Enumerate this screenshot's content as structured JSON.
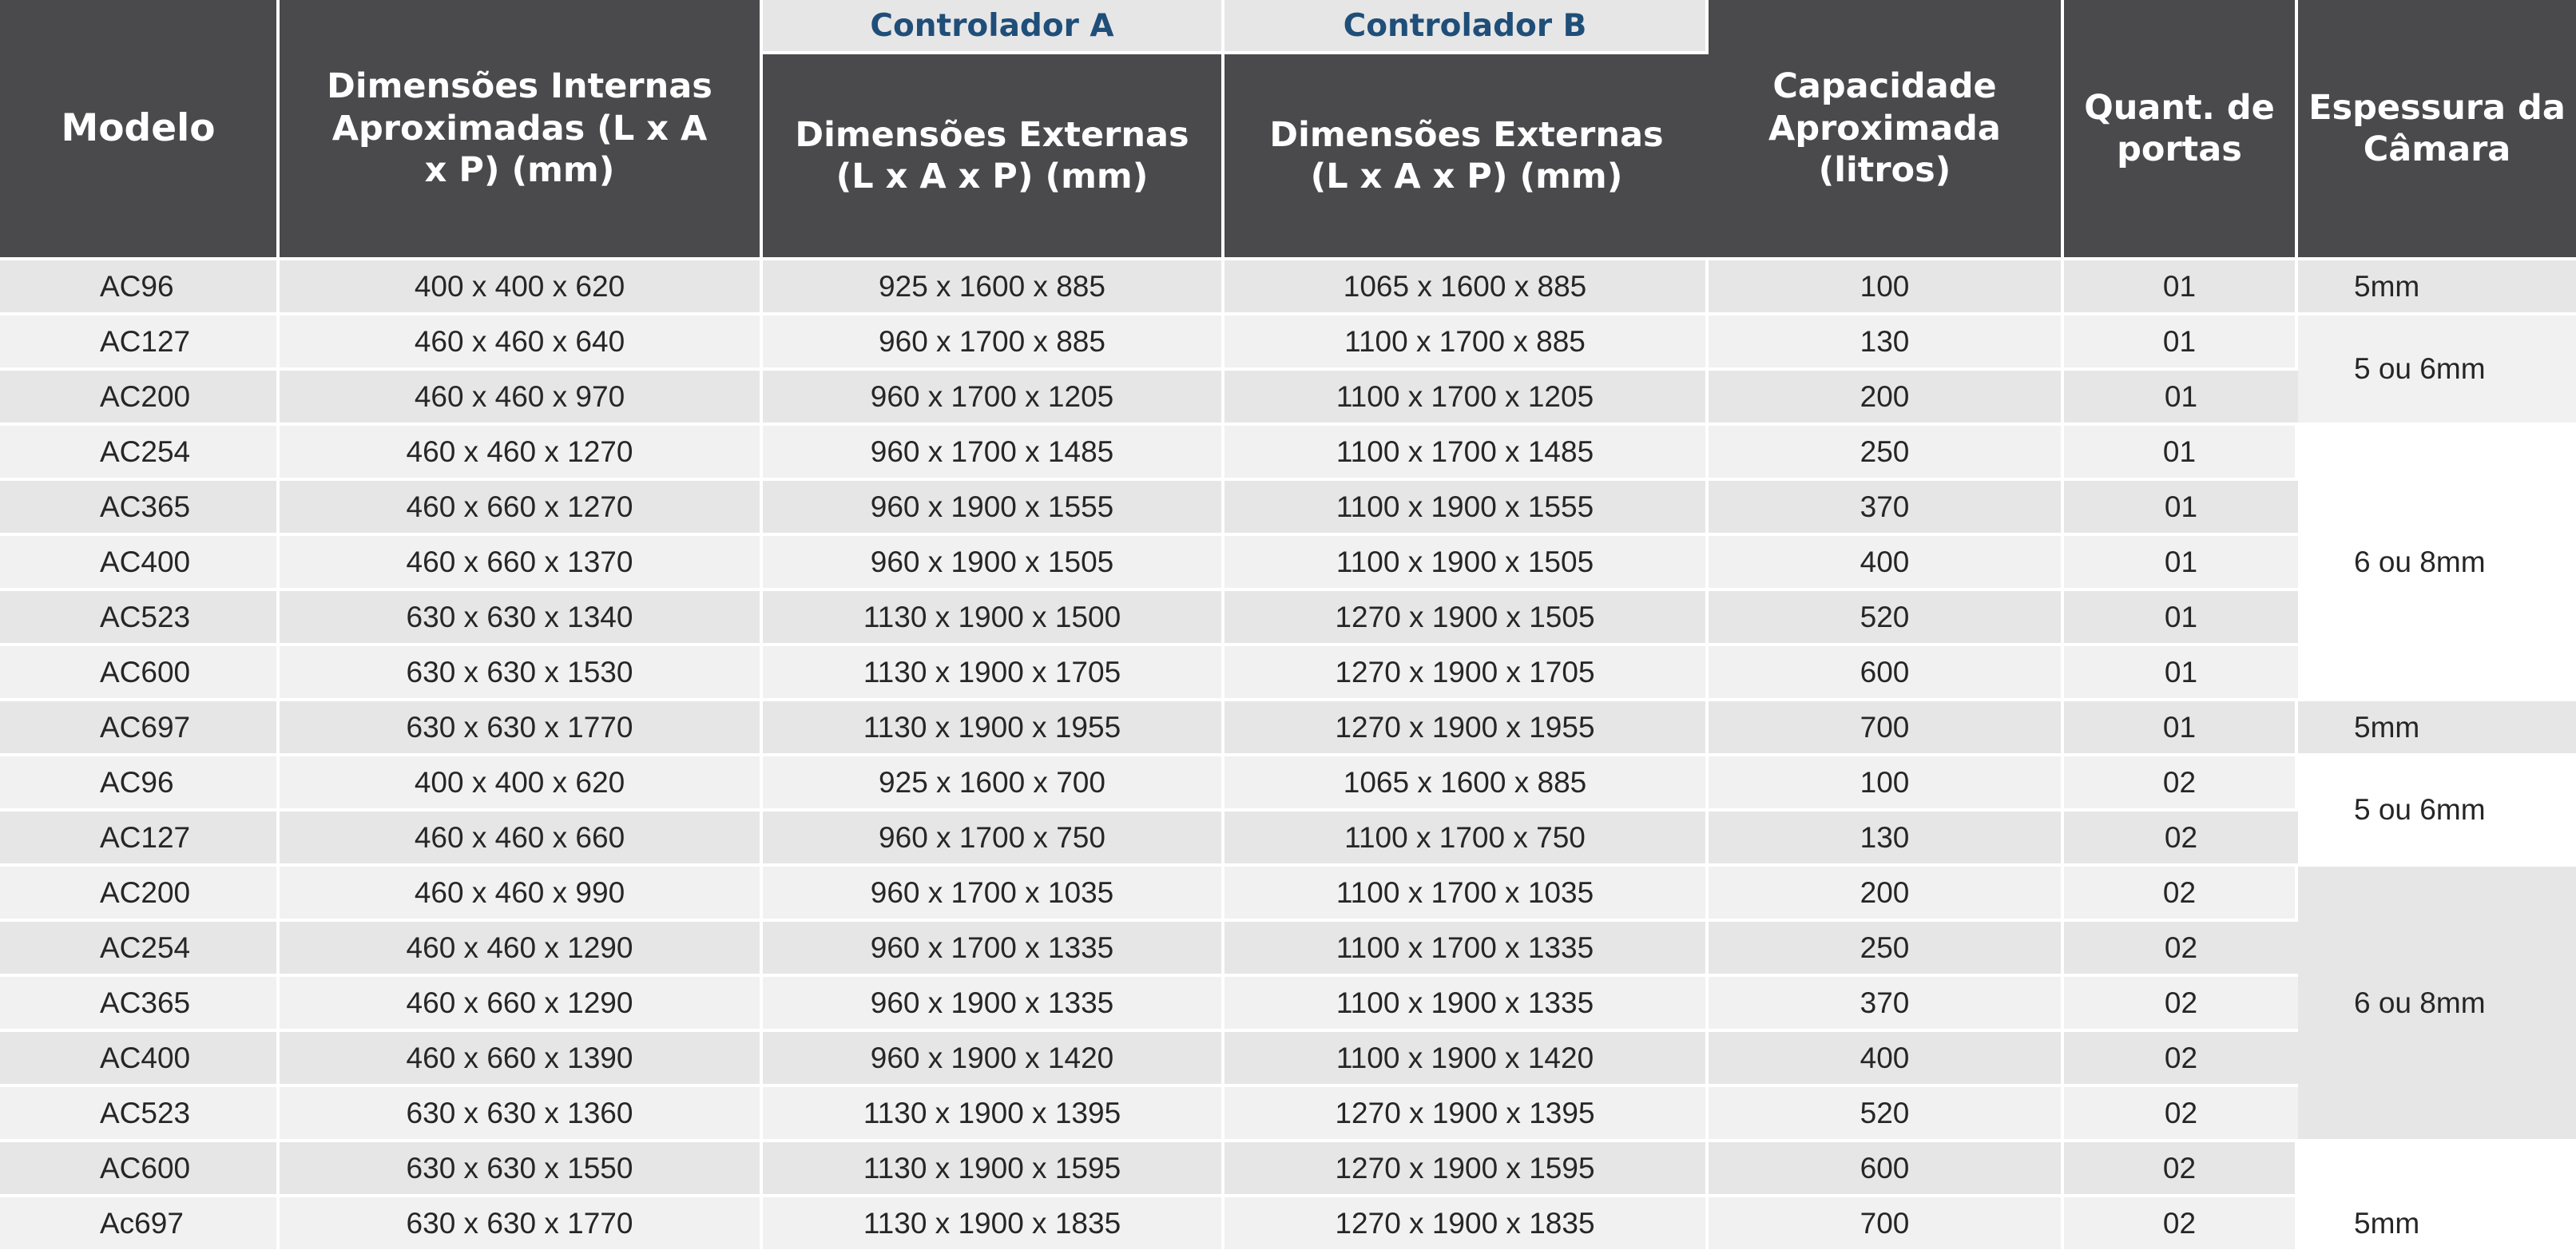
{
  "headers": {
    "modelo": "Modelo",
    "internas": "Dimensões Internas Aproximadas (L x A x P) (mm)",
    "controlador_a": "Controlador A",
    "controlador_b": "Controlador B",
    "externas_a": "Dimensões Externas (L x A x P) (mm)",
    "externas_b": "Dimensões Externas (L x A x P) (mm)",
    "capacidade": "Capacidade Aproximada (litros)",
    "portas": "Quant. de portas",
    "espessura": "Espessura da Câmara"
  },
  "rows": [
    {
      "modelo": "AC96",
      "internas": "400 x 400 x 620",
      "externas_a": "925 x 1600 x 885",
      "externas_b": "1065 x 1600 x 885",
      "capacidade": "100",
      "portas": "01"
    },
    {
      "modelo": "AC127",
      "internas": "460 x 460 x 640",
      "externas_a": "960 x 1700 x 885",
      "externas_b": "1100 x 1700 x 885",
      "capacidade": "130",
      "portas": "01"
    },
    {
      "modelo": "AC200",
      "internas": "460 x 460 x 970",
      "externas_a": "960 x 1700 x 1205",
      "externas_b": "1100 x 1700 x 1205",
      "capacidade": "200",
      "portas": "01"
    },
    {
      "modelo": "AC254",
      "internas": "460 x 460 x 1270",
      "externas_a": "960 x 1700 x 1485",
      "externas_b": "1100 x 1700 x 1485",
      "capacidade": "250",
      "portas": "01"
    },
    {
      "modelo": "AC365",
      "internas": "460 x 660 x 1270",
      "externas_a": "960 x 1900 x 1555",
      "externas_b": "1100 x 1900 x 1555",
      "capacidade": "370",
      "portas": "01"
    },
    {
      "modelo": "AC400",
      "internas": "460 x 660 x 1370",
      "externas_a": "960 x 1900 x 1505",
      "externas_b": "1100 x 1900 x 1505",
      "capacidade": "400",
      "portas": "01"
    },
    {
      "modelo": "AC523",
      "internas": "630 x 630 x 1340",
      "externas_a": "1130 x 1900 x 1500",
      "externas_b": "1270 x 1900 x 1505",
      "capacidade": "520",
      "portas": "01"
    },
    {
      "modelo": "AC600",
      "internas": "630 x 630 x 1530",
      "externas_a": "1130 x 1900 x 1705",
      "externas_b": "1270 x 1900 x 1705",
      "capacidade": "600",
      "portas": "01"
    },
    {
      "modelo": "AC697",
      "internas": "630 x 630 x 1770",
      "externas_a": "1130 x 1900 x 1955",
      "externas_b": "1270 x 1900 x 1955",
      "capacidade": "700",
      "portas": "01"
    },
    {
      "modelo": "AC96",
      "internas": "400 x 400 x 620",
      "externas_a": "925 x 1600 x 700",
      "externas_b": "1065 x 1600 x 885",
      "capacidade": "100",
      "portas": "02"
    },
    {
      "modelo": "AC127",
      "internas": "460 x 460 x 660",
      "externas_a": "960 x 1700 x 750",
      "externas_b": "1100 x 1700 x 750",
      "capacidade": "130",
      "portas": "02"
    },
    {
      "modelo": "AC200",
      "internas": "460 x 460 x 990",
      "externas_a": "960 x 1700 x 1035",
      "externas_b": "1100 x 1700 x 1035",
      "capacidade": "200",
      "portas": "02"
    },
    {
      "modelo": "AC254",
      "internas": "460 x 460 x 1290",
      "externas_a": "960 x 1700 x 1335",
      "externas_b": "1100 x 1700 x 1335",
      "capacidade": "250",
      "portas": "02"
    },
    {
      "modelo": "AC365",
      "internas": "460 x 660 x 1290",
      "externas_a": "960 x 1900 x 1335",
      "externas_b": "1100 x 1900 x 1335",
      "capacidade": "370",
      "portas": "02"
    },
    {
      "modelo": "AC400",
      "internas": "460 x 660 x 1390",
      "externas_a": "960 x 1900 x 1420",
      "externas_b": "1100 x 1900 x 1420",
      "capacidade": "400",
      "portas": "02"
    },
    {
      "modelo": "AC523",
      "internas": "630 x 630 x 1360",
      "externas_a": "1130 x 1900 x 1395",
      "externas_b": "1270 x 1900 x 1395",
      "capacidade": "520",
      "portas": "02"
    },
    {
      "modelo": "AC600",
      "internas": "630 x 630 x 1550",
      "externas_a": "1130 x 1900 x 1595",
      "externas_b": "1270 x 1900 x 1595",
      "capacidade": "600",
      "portas": "02"
    },
    {
      "modelo": "Ac697",
      "internas": "630 x 630 x 1770",
      "externas_a": "1130 x 1900 x 1835",
      "externas_b": "1270 x 1900 x 1835",
      "capacidade": "700",
      "portas": "02"
    }
  ],
  "espessura_groups": [
    {
      "label": "5mm"
    },
    {
      "label": "5 ou 6mm"
    },
    {
      "label": "6 ou 8mm"
    },
    {
      "label": "5mm"
    },
    {
      "label": "5 ou 6mm"
    },
    {
      "label": "6 ou 8mm"
    },
    {
      "label": ""
    },
    {
      "label": "5mm"
    }
  ],
  "colors": {
    "header_bg": "#4a4a4c",
    "header_text": "#ffffff",
    "controller_label": "#1f4e79",
    "row_light": "#f1f1f1",
    "row_dark": "#e6e6e6"
  }
}
